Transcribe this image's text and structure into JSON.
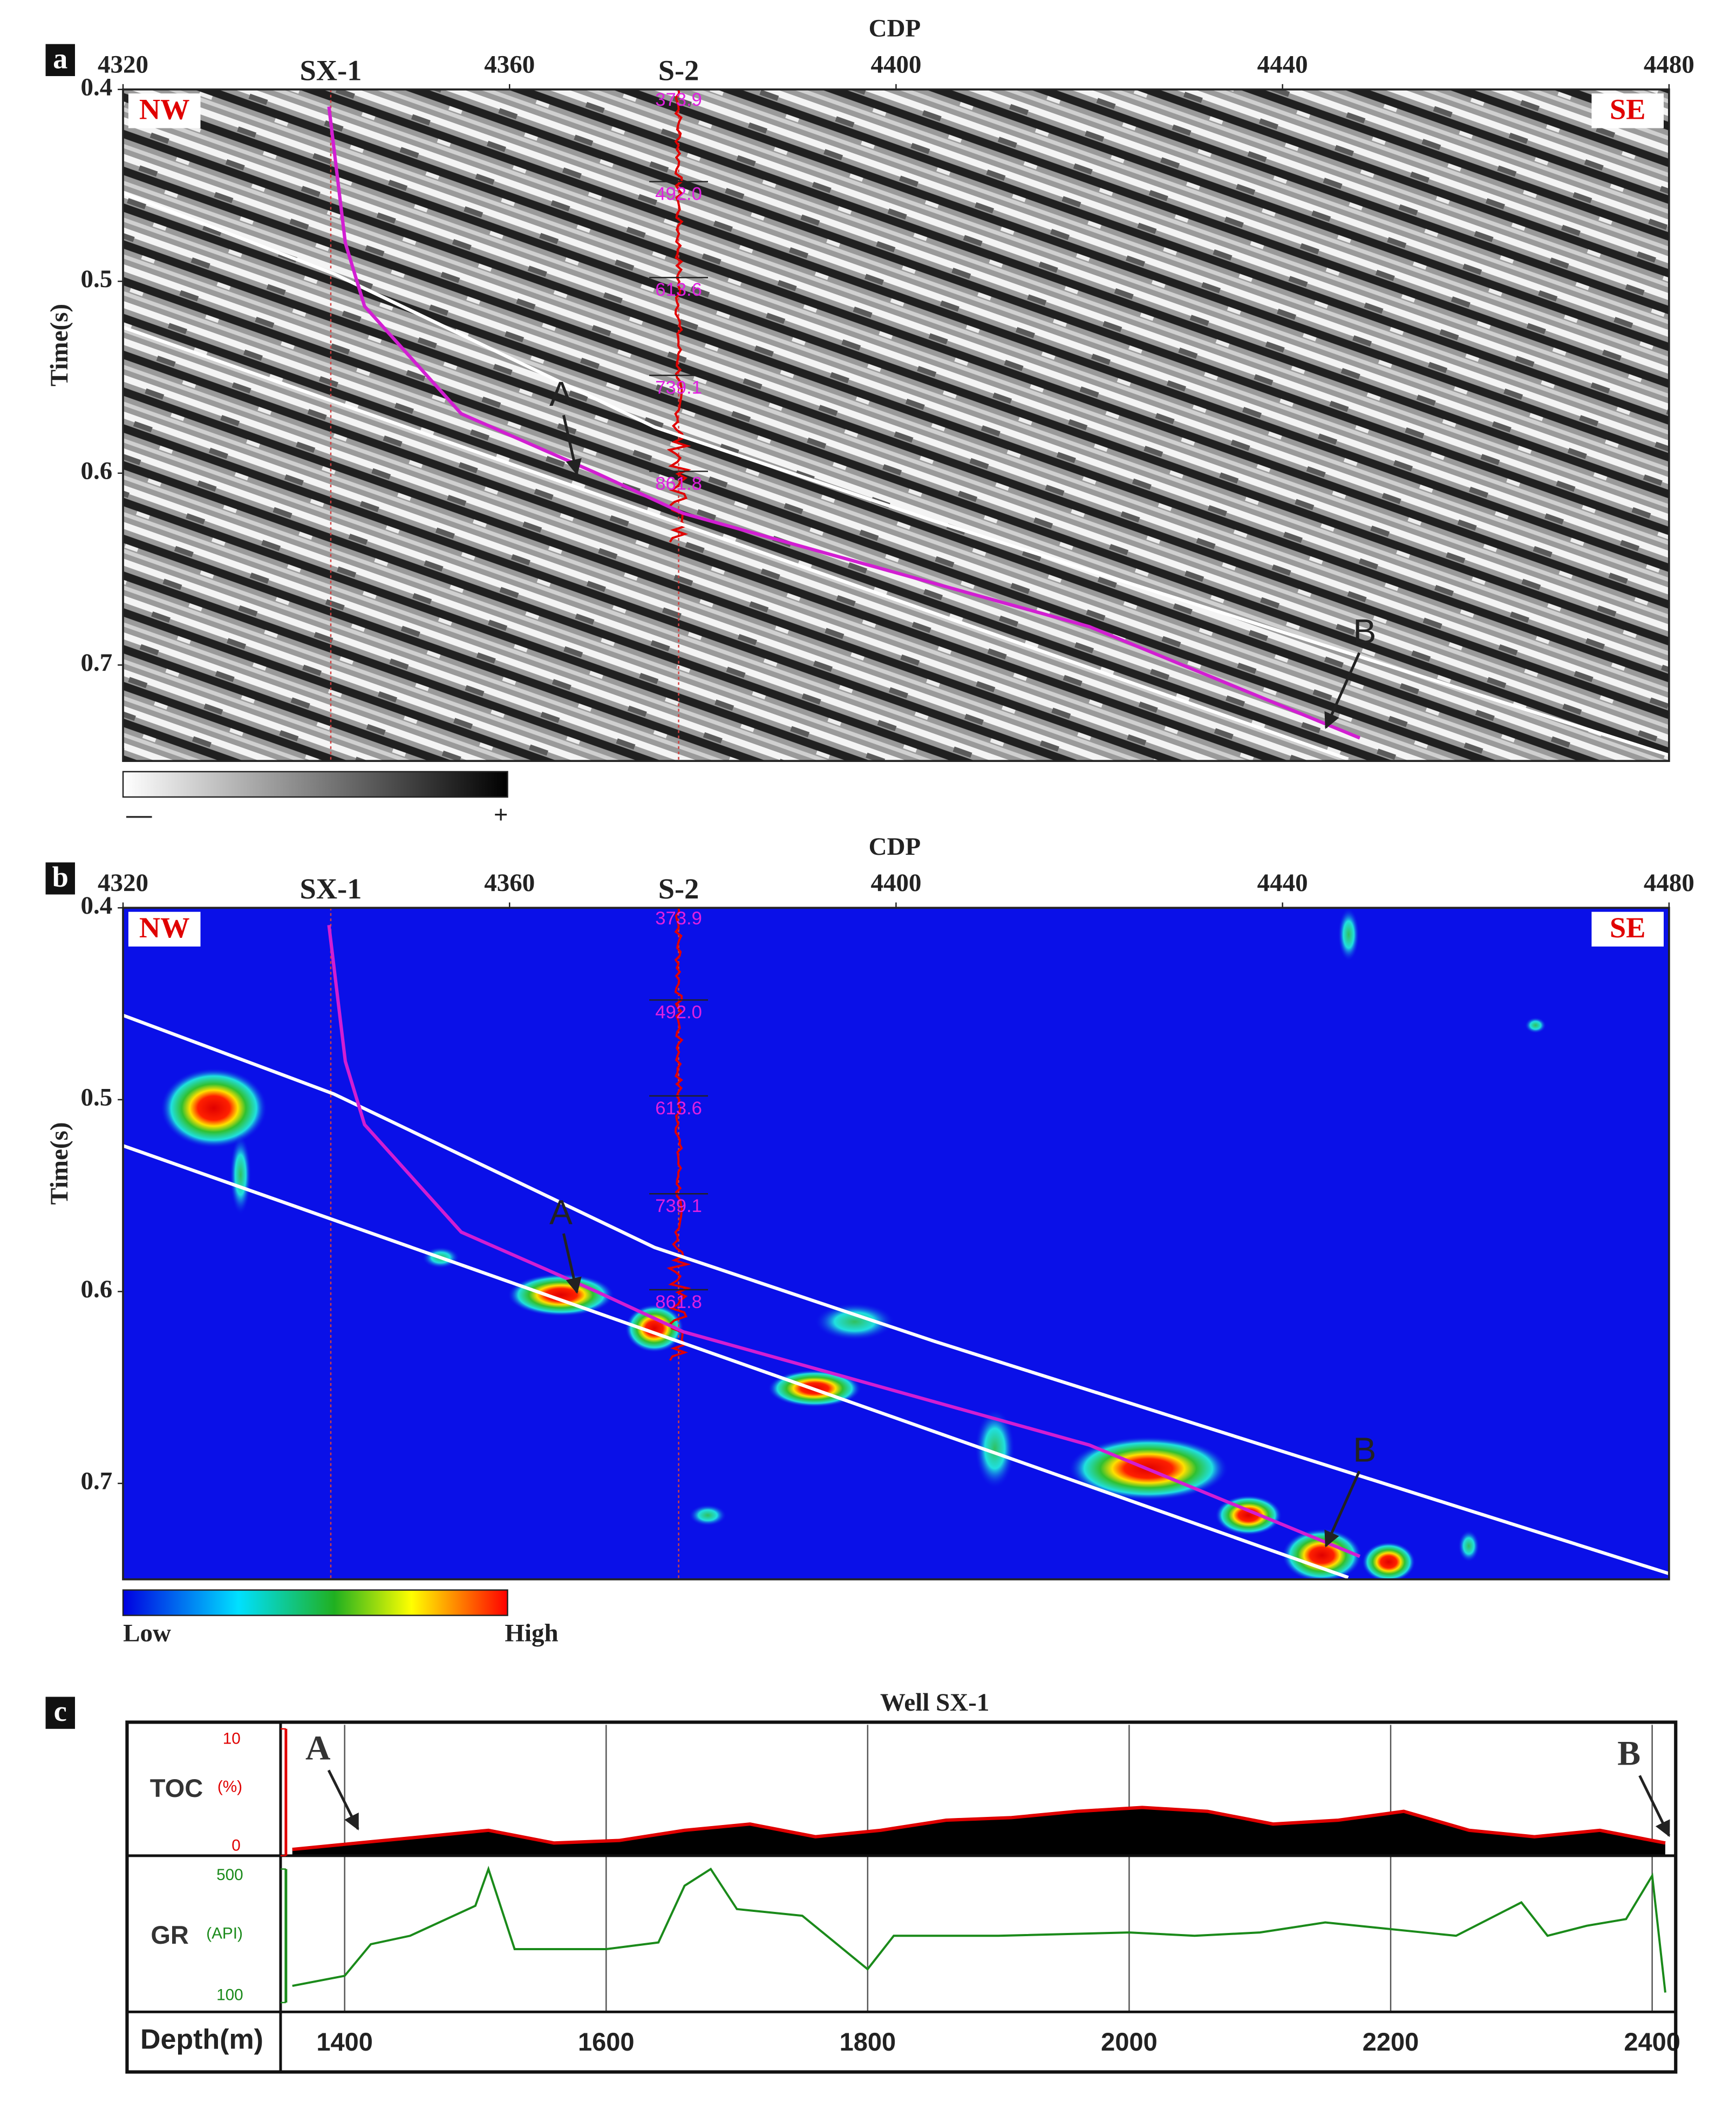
{
  "chart_data": [
    {
      "type": "line",
      "panel_label": "a",
      "xlabel": "CDP",
      "ylabel": "Time(s)",
      "background": "seismic",
      "xlim": [
        4320,
        4480
      ],
      "ylim": [
        0.4,
        0.75
      ],
      "xticks": [
        4320,
        4360,
        4400,
        4440,
        4480
      ],
      "yticks": [
        0.4,
        0.5,
        0.6,
        0.7
      ],
      "annotations": [
        "NW",
        "SE"
      ],
      "markers": [
        "A",
        "B"
      ],
      "colorbar_labels": [
        "—",
        "+"
      ],
      "wells": [
        {
          "name": "SX-1",
          "cdp": 4341.5
        },
        {
          "name": "S-2",
          "cdp": 4377.5
        }
      ],
      "well_depth_ticks": [
        {
          "value": 0.406,
          "label": "373.9"
        },
        {
          "value": 0.455,
          "label": "492.0"
        },
        {
          "value": 0.505,
          "label": "613.6"
        },
        {
          "value": 0.556,
          "label": "739.1"
        },
        {
          "value": 0.606,
          "label": "861.8"
        }
      ],
      "series": [
        {
          "color": "#ffffff",
          "x": [
            4320,
            4341.8,
            4375,
            4404,
            4480
          ],
          "values": [
            0.454,
            0.496,
            0.576,
            0.625,
            0.747
          ]
        },
        {
          "color": "#ffffff",
          "x": [
            4320,
            4446.8
          ],
          "values": [
            0.524,
            0.749
          ]
        },
        {
          "color": "#d21ed2",
          "x": [
            4341.3,
            4343,
            4345,
            4355,
            4369,
            4378,
            4420,
            4448
          ],
          "values": [
            0.409,
            0.48,
            0.513,
            0.569,
            0.6,
            0.621,
            0.68,
            0.738
          ]
        }
      ]
    },
    {
      "type": "line",
      "panel_label": "b",
      "xlabel": "CDP",
      "ylabel": "Time(s)",
      "background": "attribute",
      "xlim": [
        4320,
        4480
      ],
      "ylim": [
        0.4,
        0.75
      ],
      "xticks": [
        4320,
        4360,
        4400,
        4440,
        4480
      ],
      "yticks": [
        0.4,
        0.5,
        0.6,
        0.7
      ],
      "annotations": [
        "NW",
        "SE"
      ],
      "markers": [
        "A",
        "B"
      ],
      "colorbar_labels": [
        "Low",
        "High"
      ],
      "wells": [
        {
          "name": "SX-1",
          "cdp": 4341.5
        },
        {
          "name": "S-2",
          "cdp": 4377.5
        }
      ],
      "well_depth_ticks": [
        {
          "value": 0.406,
          "label": "373.9"
        },
        {
          "value": 0.455,
          "label": "492.0"
        },
        {
          "value": 0.505,
          "label": "613.6"
        },
        {
          "value": 0.556,
          "label": "739.1"
        },
        {
          "value": 0.606,
          "label": "861.8"
        }
      ],
      "series": [
        {
          "color": "#ffffff",
          "x": [
            4320,
            4341.8,
            4375,
            4404,
            4480
          ],
          "values": [
            0.456,
            0.497,
            0.577,
            0.626,
            0.747
          ]
        },
        {
          "color": "#ffffff",
          "x": [
            4320,
            4446.8
          ],
          "values": [
            0.524,
            0.749
          ]
        },
        {
          "color": "#d21ed2",
          "x": [
            4341.3,
            4343,
            4345,
            4355,
            4369,
            4378,
            4420,
            4448
          ],
          "values": [
            0.409,
            0.48,
            0.513,
            0.569,
            0.6,
            0.621,
            0.68,
            0.738
          ]
        }
      ]
    },
    {
      "type": "area",
      "panel_label": "c",
      "title": "Well SX-1",
      "ylabel": "TOC",
      "yunit": "(%)",
      "markers": [
        "A",
        "B"
      ],
      "xlim": [
        1351,
        2418
      ],
      "ylim": [
        0,
        10
      ],
      "yticks": [
        0,
        10
      ],
      "color": "#e00000",
      "x": [
        1360,
        1410,
        1460,
        1510,
        1560,
        1610,
        1660,
        1710,
        1760,
        1810,
        1860,
        1910,
        1960,
        2010,
        2060,
        2110,
        2160,
        2210,
        2260,
        2310,
        2360,
        2410
      ],
      "values": [
        0.5,
        1.0,
        1.5,
        2.0,
        1.0,
        1.2,
        2.0,
        2.5,
        1.5,
        2.0,
        2.8,
        3.0,
        3.5,
        3.8,
        3.5,
        2.5,
        2.8,
        3.5,
        2.0,
        1.5,
        2.0,
        1.0
      ]
    },
    {
      "type": "line",
      "xlabel": "Depth(m)",
      "ylabel": "GR",
      "yunit": "(API)",
      "xlim": [
        1351,
        2418
      ],
      "ylim": [
        100,
        500
      ],
      "yticks": [
        100,
        500
      ],
      "xticks": [
        1400,
        1600,
        1800,
        2000,
        2200,
        2400
      ],
      "color": "#1a8a1a",
      "x": [
        1360,
        1400,
        1420,
        1450,
        1500,
        1510,
        1530,
        1600,
        1640,
        1660,
        1680,
        1700,
        1750,
        1800,
        1820,
        1900,
        2000,
        2050,
        2100,
        2150,
        2200,
        2250,
        2300,
        2320,
        2350,
        2380,
        2400,
        2410
      ],
      "values": [
        150,
        180,
        275,
        300,
        390,
        500,
        260,
        260,
        280,
        450,
        500,
        380,
        360,
        200,
        300,
        300,
        310,
        300,
        310,
        340,
        320,
        300,
        400,
        300,
        330,
        350,
        480,
        130
      ]
    }
  ]
}
